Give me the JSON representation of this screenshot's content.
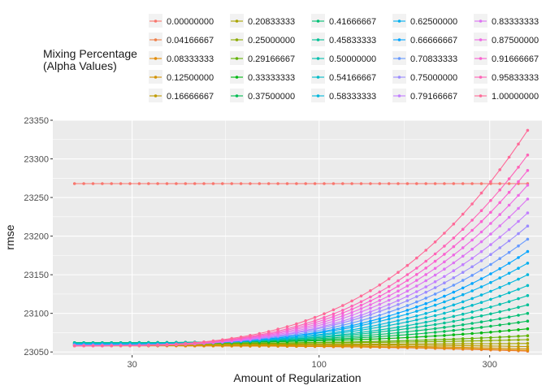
{
  "chart_data": {
    "type": "line",
    "xlabel": "Amount of Regularization",
    "ylabel": "rmse",
    "x_scale": "log10",
    "x_ticks": [
      30,
      100,
      300
    ],
    "y_ticks": [
      23050,
      23100,
      23150,
      23200,
      23250,
      23300,
      23350
    ],
    "xlim": [
      18,
      420
    ],
    "ylim": [
      23046,
      23350
    ],
    "grid": true,
    "legend": {
      "title_lines": [
        "Mixing Percentage",
        "(Alpha Values)"
      ],
      "placement": "top"
    },
    "points_per_series": 50,
    "lambda_range": [
      20.7,
      383
    ],
    "series": [
      {
        "name": "0.00000000",
        "color": "#F8766D",
        "start": 23268,
        "end": 23268
      },
      {
        "name": "0.04166667",
        "color": "#EF7F49",
        "start": 23058,
        "end": 23051
      },
      {
        "name": "0.08333333",
        "color": "#E28A00",
        "start": 23058,
        "end": 23052
      },
      {
        "name": "0.12500000",
        "color": "#D39200",
        "start": 23059,
        "end": 23054
      },
      {
        "name": "0.16666667",
        "color": "#C09B00",
        "start": 23060,
        "end": 23057
      },
      {
        "name": "0.20833333",
        "color": "#A9A400",
        "start": 23060,
        "end": 23061
      },
      {
        "name": "0.25000000",
        "color": "#8BAB00",
        "start": 23061,
        "end": 23066
      },
      {
        "name": "0.29166667",
        "color": "#61B200",
        "start": 23061,
        "end": 23071
      },
      {
        "name": "0.33333333",
        "color": "#00B812",
        "start": 23062,
        "end": 23080
      },
      {
        "name": "0.37500000",
        "color": "#00BC52",
        "start": 23062,
        "end": 23090
      },
      {
        "name": "0.41666667",
        "color": "#00BF74",
        "start": 23062,
        "end": 23100
      },
      {
        "name": "0.45833333",
        "color": "#00C094",
        "start": 23062,
        "end": 23111
      },
      {
        "name": "0.50000000",
        "color": "#00C0AF",
        "start": 23061,
        "end": 23123
      },
      {
        "name": "0.54166667",
        "color": "#00BCC8",
        "start": 23061,
        "end": 23136
      },
      {
        "name": "0.58333333",
        "color": "#00B7DD",
        "start": 23060,
        "end": 23150
      },
      {
        "name": "0.62500000",
        "color": "#00AFEF",
        "start": 23060,
        "end": 23165
      },
      {
        "name": "0.66666667",
        "color": "#00A5FF",
        "start": 23059,
        "end": 23180
      },
      {
        "name": "0.70833333",
        "color": "#6699FF",
        "start": 23059,
        "end": 23196
      },
      {
        "name": "0.75000000",
        "color": "#9C8CFF",
        "start": 23059,
        "end": 23213
      },
      {
        "name": "0.79166667",
        "color": "#C27FFF",
        "start": 23058,
        "end": 23230
      },
      {
        "name": "0.83333333",
        "color": "#DD74F3",
        "start": 23058,
        "end": 23248
      },
      {
        "name": "0.87500000",
        "color": "#EE6AE4",
        "start": 23058,
        "end": 23266
      },
      {
        "name": "0.91666667",
        "color": "#FA62D0",
        "start": 23058,
        "end": 23285
      },
      {
        "name": "0.95833333",
        "color": "#FF63B7",
        "start": 23058,
        "end": 23305
      },
      {
        "name": "1.00000000",
        "color": "#FF6A98",
        "start": 23058,
        "end": 23337
      }
    ]
  }
}
